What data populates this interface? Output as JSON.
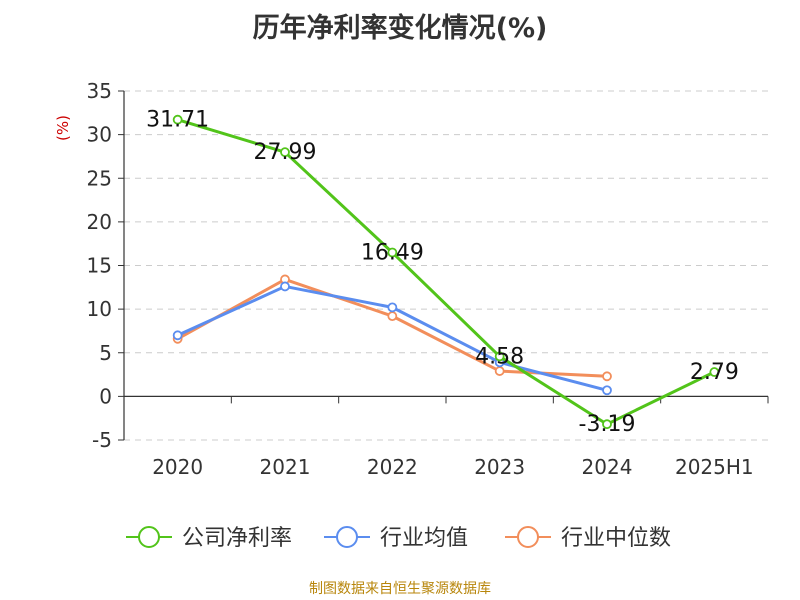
{
  "chart_data": {
    "type": "line",
    "title": "历年净利率变化情况(%)",
    "ylabel": "(%)",
    "xlabel": "",
    "ylim": [
      -5,
      35
    ],
    "yticks": [
      -5,
      0,
      5,
      10,
      15,
      20,
      25,
      30,
      35
    ],
    "categories": [
      "2020",
      "2021",
      "2022",
      "2023",
      "2024",
      "2025H1"
    ],
    "grid": true,
    "legend_position": "bottom",
    "series": [
      {
        "name": "公司净利率",
        "color": "#52c41a",
        "values": [
          31.71,
          27.99,
          16.49,
          4.58,
          -3.19,
          2.79
        ],
        "labels": [
          "31.71",
          "27.99",
          "16.49",
          "4.58",
          "-3.19",
          "2.79"
        ]
      },
      {
        "name": "行业均值",
        "color": "#5b8def",
        "values": [
          7.0,
          12.6,
          10.2,
          3.9,
          0.7,
          null
        ]
      },
      {
        "name": "行业中位数",
        "color": "#f28e5b",
        "values": [
          6.6,
          13.4,
          9.2,
          2.9,
          2.3,
          null
        ]
      }
    ]
  },
  "source": "制图数据来自恒生聚源数据库"
}
